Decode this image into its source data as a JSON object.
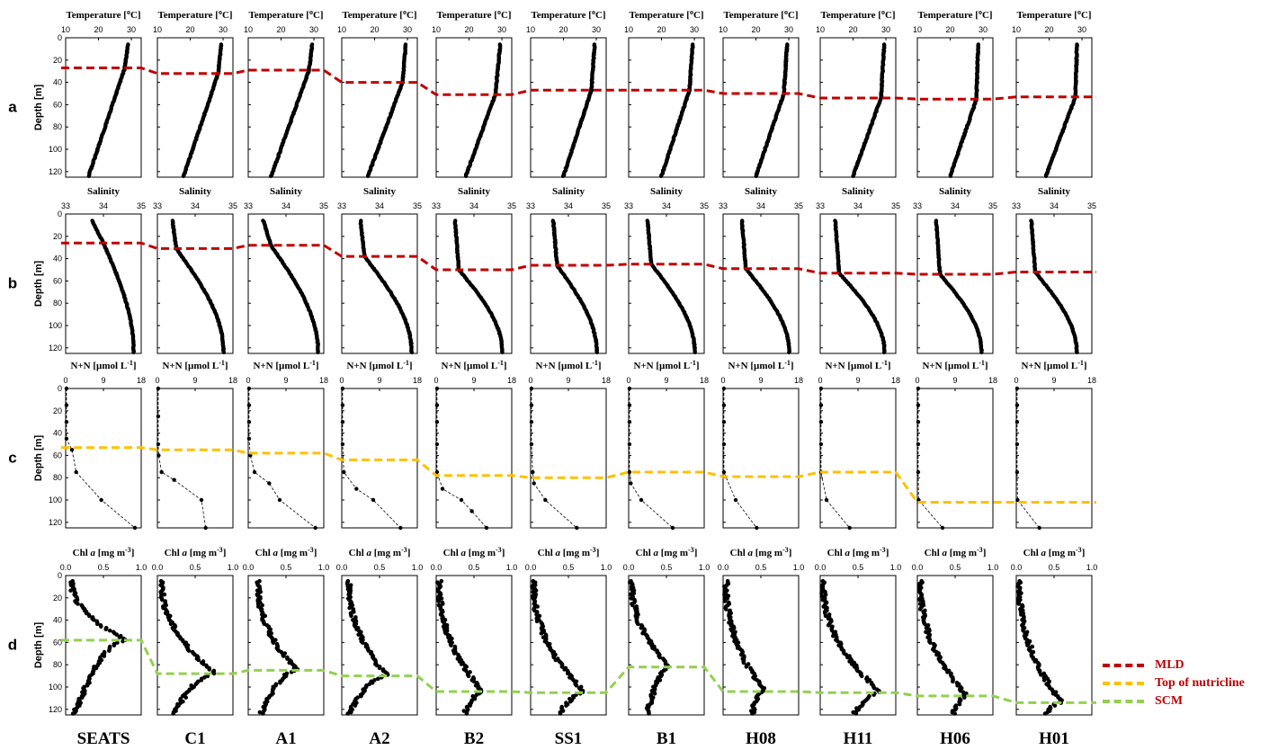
{
  "chart_data": {
    "type": "line",
    "stations": [
      "SEATS",
      "C1",
      "A1",
      "A2",
      "B2",
      "SS1",
      "B1",
      "H08",
      "H11",
      "H06",
      "H01"
    ],
    "row_letters": [
      "a",
      "b",
      "c",
      "d"
    ],
    "ylabel": "Depth [m]",
    "ylim": [
      125,
      0
    ],
    "yticks": [
      0,
      20,
      40,
      60,
      80,
      100,
      120
    ],
    "colors": {
      "MLD": "#c00000",
      "Top of nutricline": "#ffc000",
      "SCM": "#92d050",
      "profile": "#000000"
    },
    "legend": [
      {
        "name": "MLD",
        "color": "#c00000"
      },
      {
        "name": "Top of nutricline",
        "color": "#ffc000"
      },
      {
        "name": "SCM",
        "color": "#92d050"
      }
    ],
    "rows": [
      {
        "key": "a",
        "xlabel_main": "Temperature [",
        "xlabel_sup": "o",
        "xlabel_end": "C]",
        "xlim": [
          10,
          33
        ],
        "xticks": [
          "10",
          "20",
          "30"
        ],
        "xtick_values": [
          10,
          20,
          30
        ],
        "line_name": "MLD",
        "line_depths": [
          27,
          32,
          29,
          40,
          51,
          47,
          47,
          50,
          54,
          55,
          53
        ],
        "profiles": [
          {
            "surf": 29.0,
            "mld": 27,
            "mldT": 28.0,
            "bot": 17
          },
          {
            "surf": 29.5,
            "mld": 32,
            "mldT": 28.5,
            "bot": 18
          },
          {
            "surf": 29.5,
            "mld": 29,
            "mldT": 28.5,
            "bot": 17
          },
          {
            "surf": 29.5,
            "mld": 40,
            "mldT": 28.5,
            "bot": 18
          },
          {
            "surf": 29.5,
            "mld": 51,
            "mldT": 28.0,
            "bot": 19
          },
          {
            "surf": 29.5,
            "mld": 47,
            "mldT": 28.5,
            "bot": 20
          },
          {
            "surf": 29.5,
            "mld": 47,
            "mldT": 28.5,
            "bot": 20
          },
          {
            "surf": 29.5,
            "mld": 50,
            "mldT": 28.5,
            "bot": 20
          },
          {
            "surf": 29.5,
            "mld": 54,
            "mldT": 28.5,
            "bot": 20
          },
          {
            "surf": 28.5,
            "mld": 55,
            "mldT": 28.0,
            "bot": 20
          },
          {
            "surf": 28.5,
            "mld": 53,
            "mldT": 28.0,
            "bot": 19
          }
        ]
      },
      {
        "key": "b",
        "xlabel_main": "Salinity",
        "xlim": [
          33,
          35
        ],
        "xticks": [
          "33",
          "34",
          "35"
        ],
        "xtick_values": [
          33,
          34,
          35
        ],
        "line_name": "MLD",
        "line_depths": [
          26,
          31,
          28,
          38,
          50,
          46,
          45,
          49,
          53,
          54,
          52
        ],
        "profiles": [
          {
            "surf": 33.7,
            "mld": 26,
            "mldT": 34.0,
            "bot": 34.8
          },
          {
            "surf": 33.4,
            "mld": 31,
            "mldT": 33.5,
            "bot": 34.75
          },
          {
            "surf": 33.4,
            "mld": 28,
            "mldT": 33.6,
            "bot": 34.85
          },
          {
            "surf": 33.5,
            "mld": 38,
            "mldT": 33.6,
            "bot": 34.85
          },
          {
            "surf": 33.5,
            "mld": 50,
            "mldT": 33.6,
            "bot": 34.75
          },
          {
            "surf": 33.6,
            "mld": 46,
            "mldT": 33.7,
            "bot": 34.75
          },
          {
            "surf": 33.5,
            "mld": 45,
            "mldT": 33.6,
            "bot": 34.75
          },
          {
            "surf": 33.5,
            "mld": 49,
            "mldT": 33.6,
            "bot": 34.75
          },
          {
            "surf": 33.4,
            "mld": 53,
            "mldT": 33.5,
            "bot": 34.7
          },
          {
            "surf": 33.5,
            "mld": 54,
            "mldT": 33.6,
            "bot": 34.7
          },
          {
            "surf": 33.4,
            "mld": 52,
            "mldT": 33.5,
            "bot": 34.6
          }
        ]
      },
      {
        "key": "c",
        "xlabel_main": "N+N [µmol L",
        "xlabel_sup": "-1",
        "xlabel_end": "]",
        "xlim": [
          0,
          18
        ],
        "xticks": [
          "0",
          "9",
          "18"
        ],
        "xtick_values": [
          0,
          9,
          18
        ],
        "line_name": "Top of nutricline",
        "line_depths": [
          53,
          55,
          58,
          64,
          78,
          80,
          75,
          79,
          75,
          102,
          102
        ],
        "points": [
          [
            [
              0,
              0.2
            ],
            [
              15,
              0.2
            ],
            [
              30,
              0.2
            ],
            [
              45,
              0.2
            ],
            [
              55,
              1.5
            ],
            [
              75,
              2.5
            ],
            [
              100,
              8.5
            ],
            [
              125,
              16.5
            ]
          ],
          [
            [
              0,
              0.2
            ],
            [
              25,
              0.2
            ],
            [
              50,
              0.2
            ],
            [
              60,
              0.3
            ],
            [
              75,
              1.0
            ],
            [
              82,
              4.0
            ],
            [
              100,
              10.5
            ],
            [
              125,
              11.5
            ]
          ],
          [
            [
              0,
              0.2
            ],
            [
              15,
              0.2
            ],
            [
              30,
              0.2
            ],
            [
              45,
              0.2
            ],
            [
              60,
              0.5
            ],
            [
              75,
              1.5
            ],
            [
              85,
              5.0
            ],
            [
              100,
              7.5
            ],
            [
              125,
              16.0
            ]
          ],
          [
            [
              0,
              0.2
            ],
            [
              15,
              0.2
            ],
            [
              30,
              0.2
            ],
            [
              50,
              0.2
            ],
            [
              75,
              0.5
            ],
            [
              90,
              3.5
            ],
            [
              100,
              7.5
            ],
            [
              125,
              14.0
            ]
          ],
          [
            [
              0,
              0.2
            ],
            [
              15,
              0.2
            ],
            [
              30,
              0.2
            ],
            [
              50,
              0.2
            ],
            [
              75,
              0.2
            ],
            [
              90,
              1.5
            ],
            [
              100,
              6.0
            ],
            [
              110,
              8.5
            ],
            [
              125,
              12.0
            ]
          ],
          [
            [
              0,
              0.2
            ],
            [
              15,
              0.2
            ],
            [
              30,
              0.2
            ],
            [
              50,
              0.2
            ],
            [
              75,
              0.5
            ],
            [
              85,
              0.8
            ],
            [
              100,
              3.5
            ],
            [
              125,
              11.0
            ]
          ],
          [
            [
              0,
              0.2
            ],
            [
              15,
              0.2
            ],
            [
              30,
              0.2
            ],
            [
              50,
              0.2
            ],
            [
              75,
              0.2
            ],
            [
              85,
              0.5
            ],
            [
              100,
              3.0
            ],
            [
              125,
              10.5
            ]
          ],
          [
            [
              0,
              0.2
            ],
            [
              15,
              0.2
            ],
            [
              30,
              0.2
            ],
            [
              50,
              0.2
            ],
            [
              75,
              0.2
            ],
            [
              100,
              3.0
            ],
            [
              125,
              8.0
            ]
          ],
          [
            [
              0,
              0.2
            ],
            [
              15,
              0.2
            ],
            [
              30,
              0.2
            ],
            [
              50,
              0.2
            ],
            [
              75,
              0.2
            ],
            [
              100,
              1.5
            ],
            [
              125,
              7.0
            ]
          ],
          [
            [
              0,
              0.2
            ],
            [
              15,
              0.2
            ],
            [
              30,
              0.2
            ],
            [
              50,
              0.2
            ],
            [
              75,
              0.2
            ],
            [
              100,
              0.3
            ],
            [
              125,
              6.0
            ]
          ],
          [
            [
              0,
              0.2
            ],
            [
              15,
              0.2
            ],
            [
              30,
              0.2
            ],
            [
              50,
              0.2
            ],
            [
              75,
              0.2
            ],
            [
              100,
              0.3
            ],
            [
              125,
              5.5
            ]
          ]
        ]
      },
      {
        "key": "d",
        "xlabel_main": "Chl ",
        "xlabel_ital": "a",
        "xlabel_mid": " [mg m",
        "xlabel_sup": "-3",
        "xlabel_end": "]",
        "xlim": [
          0,
          1.0
        ],
        "xticks": [
          "0.0",
          "0.5",
          "1.0"
        ],
        "xtick_values": [
          0,
          0.5,
          1.0
        ],
        "line_name": "SCM",
        "line_depths": [
          58,
          88,
          85,
          90,
          104,
          105,
          82,
          104,
          105,
          108,
          114
        ],
        "profiles": [
          {
            "peakD": 58,
            "peakV": 0.82,
            "surfV": 0.08,
            "botV": 0.12
          },
          {
            "peakD": 88,
            "peakV": 0.78,
            "surfV": 0.06,
            "botV": 0.22
          },
          {
            "peakD": 85,
            "peakV": 0.65,
            "surfV": 0.13,
            "botV": 0.17
          },
          {
            "peakD": 90,
            "peakV": 0.6,
            "surfV": 0.1,
            "botV": 0.1
          },
          {
            "peakD": 104,
            "peakV": 0.62,
            "surfV": 0.04,
            "botV": 0.38
          },
          {
            "peakD": 105,
            "peakV": 0.72,
            "surfV": 0.04,
            "botV": 0.38
          },
          {
            "peakD": 82,
            "peakV": 0.55,
            "surfV": 0.04,
            "botV": 0.25
          },
          {
            "peakD": 104,
            "peakV": 0.55,
            "surfV": 0.04,
            "botV": 0.38
          },
          {
            "peakD": 105,
            "peakV": 0.8,
            "surfV": 0.04,
            "botV": 0.45
          },
          {
            "peakD": 108,
            "peakV": 0.65,
            "surfV": 0.04,
            "botV": 0.48
          },
          {
            "peakD": 114,
            "peakV": 0.6,
            "surfV": 0.04,
            "botV": 0.4
          }
        ]
      }
    ]
  }
}
